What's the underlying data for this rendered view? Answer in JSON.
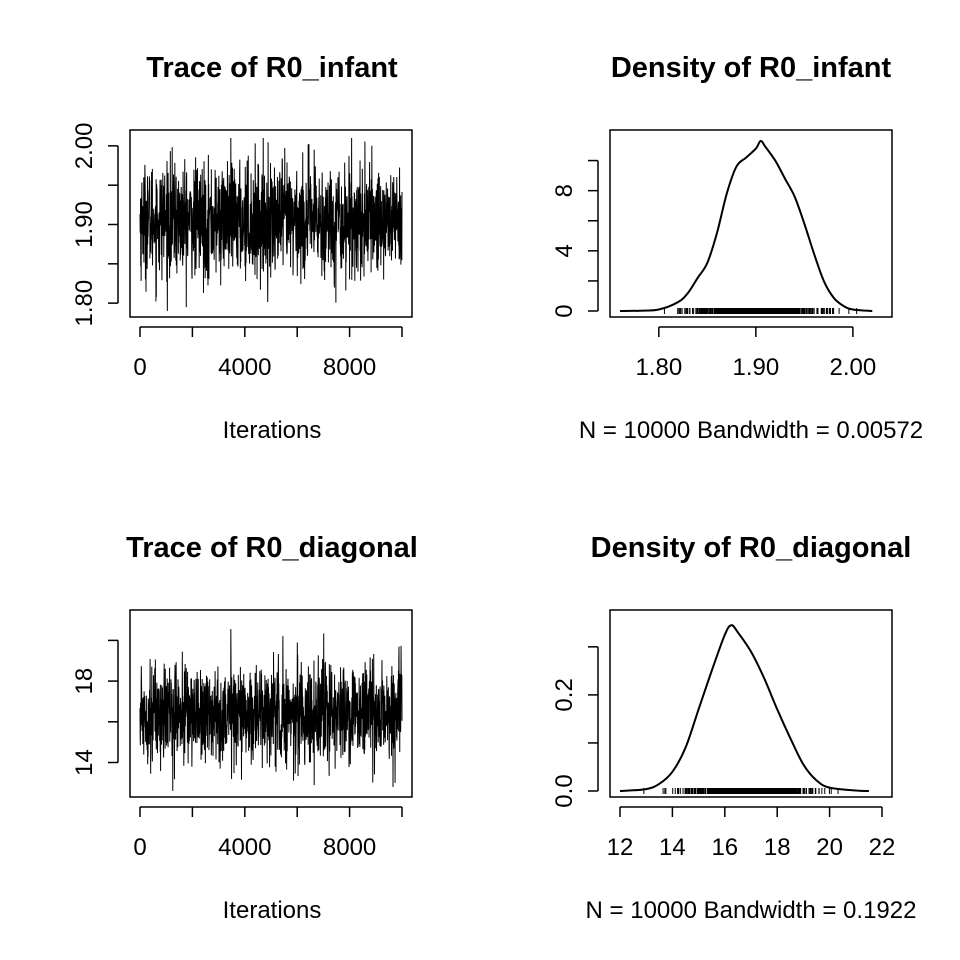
{
  "chart_data": [
    {
      "type": "line",
      "title": "Trace of R0_infant",
      "xlabel": "Iterations",
      "x": [
        0,
        1000,
        2000,
        3000,
        4000,
        5000,
        6000,
        7000,
        8000,
        9000,
        10000
      ],
      "series": [
        {
          "values": [
            1.905,
            1.91,
            1.9,
            1.91,
            1.905,
            1.9,
            1.905,
            1.91,
            1.9,
            1.905,
            1.905
          ]
        }
      ],
      "xlim": [
        0,
        10000
      ],
      "ylim": [
        1.79,
        2.01
      ],
      "xticks": [
        "0",
        "4000",
        "8000"
      ],
      "yticks": [
        "1.80",
        "1.90",
        "2.00"
      ],
      "n_iterations": 10000,
      "mean": 1.905,
      "sd": 0.036,
      "min": 1.79,
      "max": 2.01,
      "grid": false,
      "legend": "none"
    },
    {
      "type": "line",
      "title": "Density of R0_infant",
      "xlabel": "N = 10000   Bandwidth = 0.00572",
      "x": [
        1.76,
        1.78,
        1.8,
        1.82,
        1.83,
        1.84,
        1.85,
        1.86,
        1.87,
        1.88,
        1.89,
        1.9,
        1.905,
        1.91,
        1.92,
        1.93,
        1.94,
        1.95,
        1.96,
        1.97,
        1.98,
        1.99,
        2.0,
        2.02
      ],
      "series": [
        {
          "values": [
            0,
            0.02,
            0.1,
            0.6,
            1.2,
            2.2,
            3.2,
            5.2,
            7.8,
            9.6,
            10.2,
            10.8,
            11.3,
            10.9,
            10.0,
            8.8,
            7.6,
            5.8,
            3.8,
            2.0,
            0.9,
            0.35,
            0.1,
            0
          ]
        }
      ],
      "xlim": [
        1.76,
        2.03
      ],
      "ylim": [
        0,
        11.5
      ],
      "xticks": [
        "1.80",
        "1.90",
        "2.00"
      ],
      "yticks": [
        "0",
        "4",
        "8"
      ],
      "rug": {
        "from": 1.79,
        "to": 2.01
      },
      "grid": false,
      "legend": "none"
    },
    {
      "type": "line",
      "title": "Trace of R0_diagonal",
      "xlabel": "Iterations",
      "x": [
        0,
        1000,
        2000,
        3000,
        4000,
        5000,
        6000,
        7000,
        8000,
        9000,
        10000
      ],
      "series": [
        {
          "values": [
            16.3,
            16.4,
            16.3,
            16.3,
            16.4,
            16.3,
            16.3,
            16.4,
            16.3,
            16.3,
            16.3
          ]
        }
      ],
      "xlim": [
        0,
        10000
      ],
      "ylim": [
        12.6,
        21.1
      ],
      "xticks": [
        "0",
        "4000",
        "8000"
      ],
      "yticks": [
        "14",
        "18"
      ],
      "n_iterations": 10000,
      "mean": 16.4,
      "sd": 1.2,
      "min": 12.6,
      "max": 21.1,
      "grid": false,
      "legend": "none"
    },
    {
      "type": "line",
      "title": "Density of R0_diagonal",
      "xlabel": "N = 10000   Bandwidth = 0.1922",
      "x": [
        12.0,
        13.0,
        13.5,
        14.0,
        14.5,
        15.0,
        15.5,
        16.0,
        16.25,
        16.5,
        17.0,
        17.5,
        18.0,
        18.5,
        19.0,
        19.5,
        20.0,
        21.0,
        21.5
      ],
      "series": [
        {
          "values": [
            0,
            0.004,
            0.015,
            0.04,
            0.09,
            0.17,
            0.25,
            0.325,
            0.345,
            0.33,
            0.29,
            0.235,
            0.17,
            0.11,
            0.055,
            0.022,
            0.007,
            0.001,
            0
          ]
        }
      ],
      "xlim": [
        12,
        22
      ],
      "ylim": [
        0,
        0.36
      ],
      "xticks": [
        "12",
        "14",
        "16",
        "18",
        "20",
        "22"
      ],
      "yticks": [
        "0.0",
        "0.2"
      ],
      "rug": {
        "from": 12.7,
        "to": 21.2
      },
      "grid": false,
      "legend": "none"
    }
  ]
}
